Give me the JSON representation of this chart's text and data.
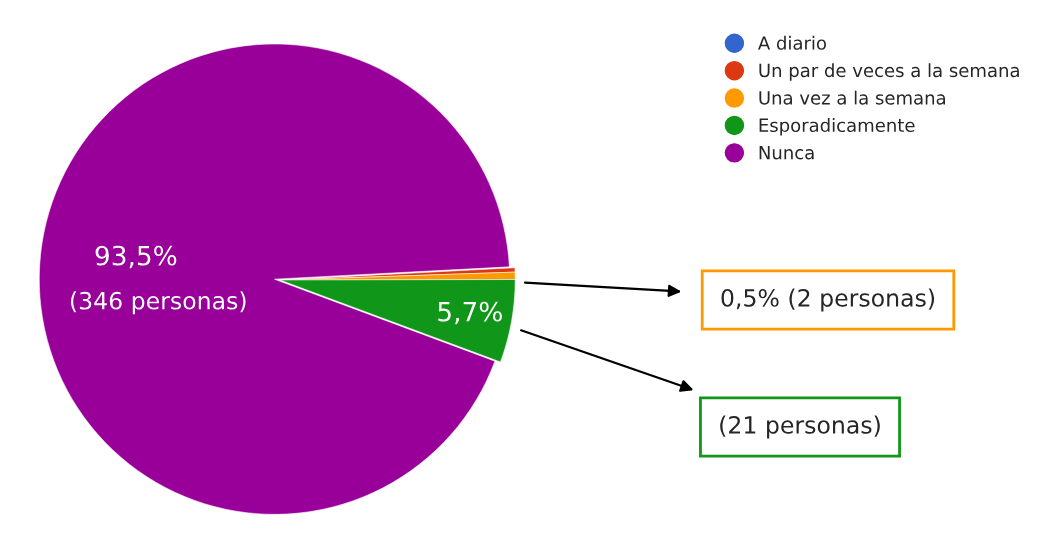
{
  "chart_data": {
    "type": "pie",
    "categories": [
      "A diario",
      "Un par de veces a la semana",
      "Una vez a la semana",
      "Esporadicamente",
      "Nunca"
    ],
    "values": [
      0,
      0.3,
      0.5,
      5.7,
      93.5
    ],
    "colors": [
      "#3366cc",
      "#dc3912",
      "#ff9900",
      "#109618",
      "#990099"
    ],
    "value_labels": [
      null,
      null,
      null,
      "5,7%",
      "93,5%"
    ],
    "annotations": [
      {
        "text": "(346 personas)",
        "x": "Nunca"
      },
      {
        "text": "0,5% (2 personas)",
        "x": "Una vez a la semana"
      },
      {
        "text": "(21 personas)",
        "x": "Esporadicamente"
      }
    ],
    "legend": "top right"
  }
}
